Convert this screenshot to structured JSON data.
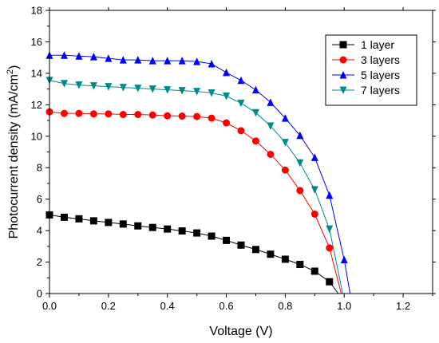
{
  "chart_data": {
    "type": "line",
    "xlabel": "Voltage (V)",
    "ylabel_main": "Photocurrent density (mA/cm",
    "ylabel_sup": "2",
    "ylabel_end": ")",
    "xlim": [
      0.0,
      1.3
    ],
    "ylim": [
      0,
      18
    ],
    "xticks": [
      0.0,
      0.2,
      0.4,
      0.6,
      0.8,
      1.0,
      1.2
    ],
    "xtick_labels": [
      "0.0",
      "0.2",
      "0.4",
      "0.6",
      "0.8",
      "1.0",
      "1.2"
    ],
    "yticks": [
      0,
      2,
      4,
      6,
      8,
      10,
      12,
      14,
      16,
      18
    ],
    "ytick_labels": [
      "0",
      "2",
      "4",
      "6",
      "8",
      "10",
      "12",
      "14",
      "16",
      "18"
    ],
    "grid": false,
    "legend_position": "top-right",
    "series": [
      {
        "name": "1 layer",
        "color": "#000000",
        "marker": "square",
        "x": [
          0.0,
          0.05,
          0.1,
          0.15,
          0.2,
          0.25,
          0.3,
          0.35,
          0.4,
          0.45,
          0.5,
          0.55,
          0.6,
          0.65,
          0.7,
          0.75,
          0.8,
          0.85,
          0.9,
          0.95,
          0.98
        ],
        "y": [
          5.0,
          4.85,
          4.75,
          4.62,
          4.52,
          4.42,
          4.3,
          4.2,
          4.1,
          3.98,
          3.85,
          3.65,
          3.38,
          3.08,
          2.8,
          2.5,
          2.18,
          1.85,
          1.42,
          0.75,
          0.0
        ],
        "marker_count": 20
      },
      {
        "name": "3 layers",
        "color": "#ff0000",
        "marker": "circle",
        "x": [
          0.0,
          0.05,
          0.1,
          0.15,
          0.2,
          0.25,
          0.3,
          0.35,
          0.4,
          0.45,
          0.5,
          0.55,
          0.6,
          0.65,
          0.7,
          0.75,
          0.8,
          0.85,
          0.9,
          0.95,
          0.99
        ],
        "y": [
          11.55,
          11.45,
          11.45,
          11.42,
          11.42,
          11.38,
          11.38,
          11.35,
          11.3,
          11.28,
          11.25,
          11.15,
          10.85,
          10.35,
          9.7,
          8.85,
          7.85,
          6.55,
          5.05,
          2.9,
          0.0
        ],
        "marker_count": 20
      },
      {
        "name": "5 layers",
        "color": "#0000ff",
        "marker": "triangle-up",
        "x": [
          0.0,
          0.05,
          0.1,
          0.15,
          0.2,
          0.25,
          0.3,
          0.35,
          0.4,
          0.45,
          0.5,
          0.55,
          0.6,
          0.65,
          0.7,
          0.75,
          0.8,
          0.85,
          0.9,
          0.95,
          1.0,
          1.02
        ],
        "y": [
          15.15,
          15.15,
          15.1,
          15.05,
          14.95,
          14.85,
          14.85,
          14.8,
          14.8,
          14.8,
          14.75,
          14.6,
          14.05,
          13.55,
          12.95,
          12.15,
          11.15,
          10.05,
          8.65,
          6.25,
          2.15,
          0.0
        ],
        "marker_count": 21
      },
      {
        "name": "7 layers",
        "color": "#008b8b",
        "marker": "triangle-down",
        "x": [
          0.0,
          0.05,
          0.1,
          0.15,
          0.2,
          0.25,
          0.3,
          0.35,
          0.4,
          0.45,
          0.5,
          0.55,
          0.6,
          0.65,
          0.7,
          0.75,
          0.8,
          0.85,
          0.9,
          0.95,
          0.995
        ],
        "y": [
          13.55,
          13.35,
          13.25,
          13.2,
          13.15,
          13.1,
          13.05,
          13.0,
          12.95,
          12.9,
          12.85,
          12.75,
          12.55,
          12.1,
          11.5,
          10.65,
          9.6,
          8.3,
          6.6,
          4.1,
          0.0
        ],
        "marker_count": 20
      }
    ]
  }
}
